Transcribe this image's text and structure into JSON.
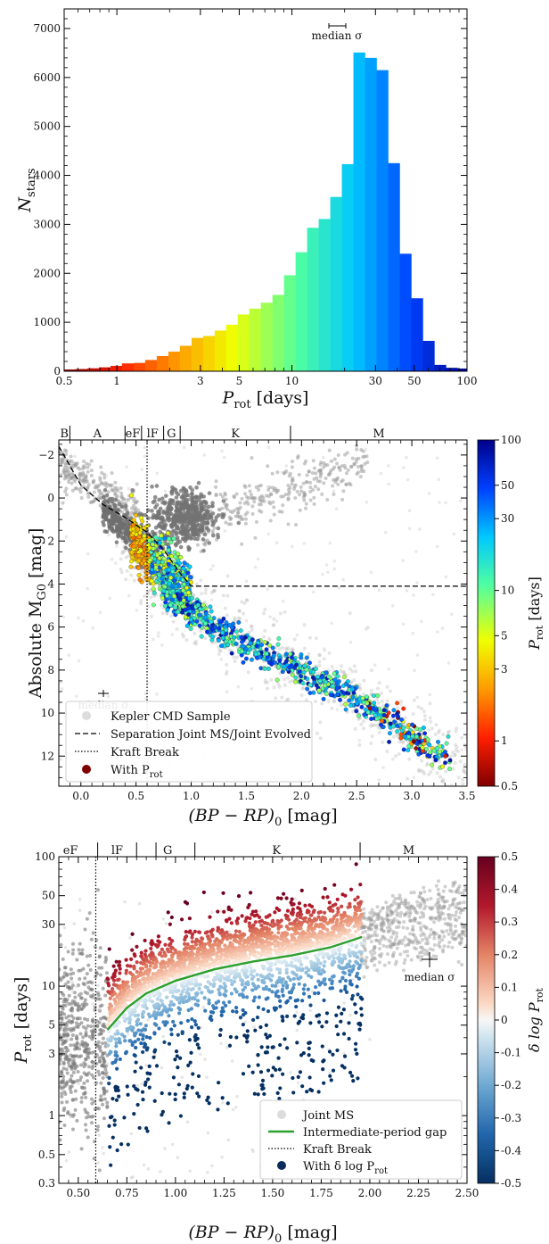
{
  "chart_data": [
    {
      "type": "bar",
      "xlabel": "P",
      "xlabel_sub": "rot",
      "xlabel_unit": "[days]",
      "ylabel": "N",
      "ylabel_sub": "stars",
      "xscale": "log",
      "xlim": [
        0.5,
        100
      ],
      "ylim": [
        0,
        7400
      ],
      "x_tick_labels": [
        "0.5",
        "1",
        "3",
        "5",
        "10",
        "30",
        "50",
        "100"
      ],
      "y_tick_labels": [
        "0",
        "1000",
        "2000",
        "3000",
        "4000",
        "5000",
        "6000",
        "7000"
      ],
      "annotation": "median σ",
      "bin_edges": [
        0.5,
        0.58,
        0.68,
        0.79,
        0.92,
        1.07,
        1.25,
        1.45,
        1.69,
        1.97,
        2.29,
        2.67,
        3.11,
        3.62,
        4.21,
        4.9,
        5.71,
        6.65,
        7.74,
        9.01,
        10.49,
        12.21,
        14.22,
        16.56,
        19.28,
        22.45,
        26.14,
        30.43,
        35.43,
        41.25,
        48.03,
        55.92,
        65.1,
        75.8,
        88.25,
        100
      ],
      "values": [
        35,
        45,
        60,
        80,
        110,
        160,
        170,
        230,
        310,
        400,
        520,
        680,
        720,
        830,
        950,
        1160,
        1280,
        1400,
        1560,
        1960,
        2430,
        2930,
        3110,
        3560,
        4230,
        6510,
        6400,
        6150,
        4250,
        2400,
        1490,
        620,
        130,
        70,
        55
      ],
      "grid": false,
      "colormap": "jet"
    },
    {
      "type": "scatter",
      "xlabel": "(BP − RP)",
      "xlabel_sub": "0",
      "xlabel_unit": "[mag]",
      "ylabel": "Absolute M",
      "ylabel_sub": "G0",
      "ylabel_unit": "[mag]",
      "xlim": [
        -0.2,
        3.5
      ],
      "ylim": [
        13.4,
        -2.7
      ],
      "y_inverted": true,
      "x_tick_labels": [
        "0.0",
        "0.5",
        "1.0",
        "1.5",
        "2.0",
        "2.5",
        "3.0",
        "3.5"
      ],
      "y_tick_labels": [
        "−2",
        "0",
        "2",
        "4",
        "6",
        "8",
        "10",
        "12"
      ],
      "spectral_types": [
        "B",
        "A",
        "eF",
        "lF",
        "G",
        "K",
        "M"
      ],
      "colorbar": {
        "label": "P",
        "label_sub": "rot",
        "label_unit": "[days]",
        "scale": "log",
        "range": [
          0.5,
          100
        ],
        "tick_labels": [
          "0.5",
          "1",
          "3",
          "5",
          "10",
          "30",
          "50",
          "100"
        ],
        "colormap": "jet_r"
      },
      "annotation": "median σ",
      "legend": [
        {
          "label": "Kepler CMD Sample"
        },
        {
          "label": "Separation Joint MS/Joint Evolved"
        },
        {
          "label": "Kraft Break"
        },
        {
          "label": "With P",
          "label_sub": "rot"
        }
      ],
      "legend_position": "lower-left",
      "kraft_break_x": 0.6,
      "separation_curve": {
        "x": [
          -0.2,
          0.0,
          0.2,
          0.4,
          0.6,
          0.75,
          0.9,
          1.0,
          3.5
        ],
        "y": [
          -2.4,
          -0.6,
          0.3,
          0.9,
          1.6,
          2.4,
          3.5,
          4.1,
          4.1
        ]
      },
      "main_sequence_ridge": {
        "x": [
          0.4,
          0.6,
          0.8,
          1.0,
          1.3,
          1.6,
          2.0,
          2.4,
          2.8,
          3.2,
          3.4
        ],
        "y": [
          2.5,
          3.6,
          4.4,
          5.2,
          6.3,
          7.1,
          8.1,
          9.0,
          10.3,
          11.8,
          12.6
        ]
      }
    },
    {
      "type": "scatter",
      "xlabel": "(BP − RP)",
      "xlabel_sub": "0",
      "xlabel_unit": "[mag]",
      "ylabel": "P",
      "ylabel_sub": "rot",
      "ylabel_unit": "[days]",
      "yscale": "log",
      "xlim": [
        0.4,
        2.5
      ],
      "ylim": [
        0.3,
        100
      ],
      "x_tick_labels": [
        "0.50",
        "0.75",
        "1.00",
        "1.25",
        "1.50",
        "1.75",
        "2.00",
        "2.25",
        "2.50"
      ],
      "y_tick_labels": [
        "0.3",
        "0.5",
        "1",
        "3",
        "5",
        "10",
        "30",
        "50",
        "100"
      ],
      "spectral_types": [
        "eF",
        "lF",
        "G",
        "K",
        "M"
      ],
      "colorbar": {
        "label": "δ log P",
        "label_sub": "rot",
        "range": [
          -0.5,
          0.5
        ],
        "tick_labels": [
          "0.5",
          "0.4",
          "0.3",
          "0.2",
          "0.1",
          "0",
          "-0.1",
          "-0.2",
          "-0.3",
          "-0.4",
          "-0.5"
        ],
        "colormap": "RdBu_r"
      },
      "annotation": "median σ",
      "legend": [
        {
          "label": "Joint MS"
        },
        {
          "label": "Intermediate-period gap"
        },
        {
          "label": "Kraft Break"
        },
        {
          "label": "With δ log P",
          "label_sub": "rot"
        }
      ],
      "legend_position": "lower-right",
      "kraft_break_x": 0.59,
      "gap_curve": {
        "x": [
          0.65,
          0.75,
          0.85,
          1.0,
          1.2,
          1.4,
          1.6,
          1.8,
          1.96
        ],
        "y": [
          4.6,
          6.8,
          8.8,
          11.0,
          13.5,
          15.5,
          17.3,
          20.0,
          24.0
        ]
      }
    }
  ]
}
